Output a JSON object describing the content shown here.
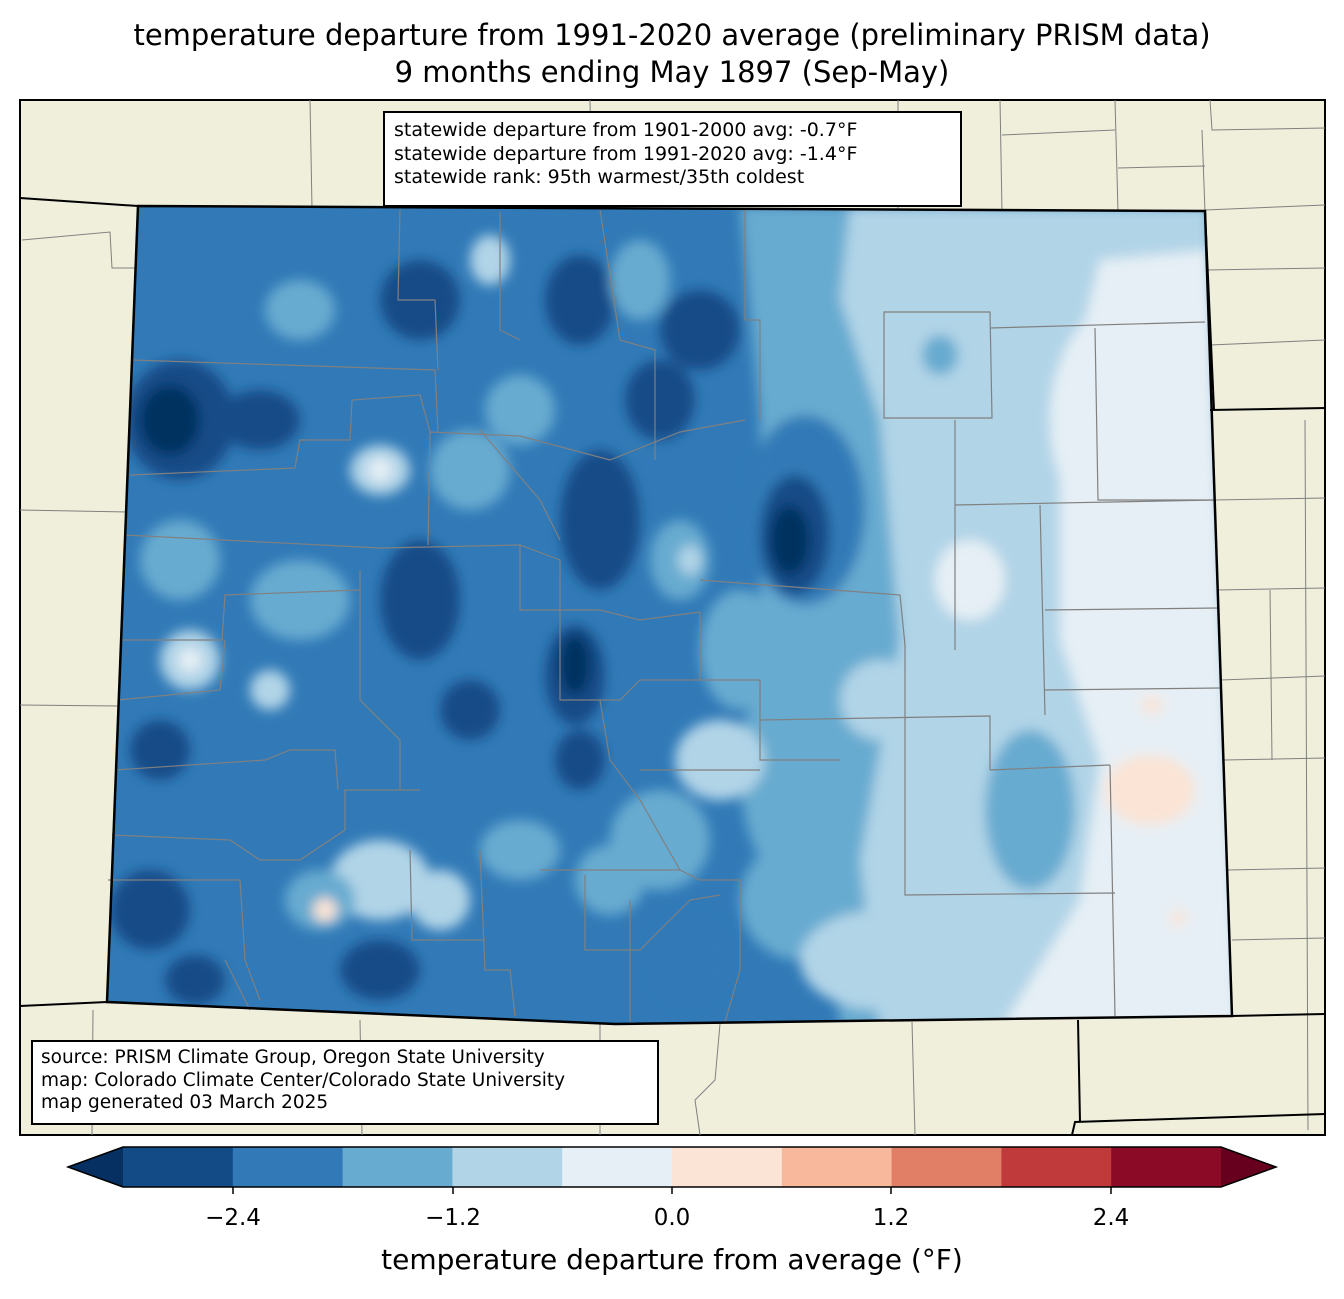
{
  "title": {
    "line1": "temperature departure from 1991-2020 average (preliminary PRISM data)",
    "line2": "9 months ending May 1897 (Sep-May)"
  },
  "stats": {
    "line1": "statewide departure from 1901-2000 avg: -0.7°F",
    "line2": "statewide departure from 1991-2020 avg: -1.4°F",
    "line3": "statewide rank: 95th warmest/35th coldest"
  },
  "source": {
    "line1": "source: PRISM Climate Group, Oregon State University",
    "line2": "map: Colorado Climate Center/Colorado State University",
    "line3": "map generated 03 March 2025"
  },
  "colorbar": {
    "label": "temperature departure from average (°F)",
    "ticks": [
      "−2.4",
      "−1.2",
      "0.0",
      "1.2",
      "2.4"
    ],
    "bins": [
      {
        "range": "< -3.0",
        "color": "#053061"
      },
      {
        "range": "-3.0 to -2.4",
        "color": "#134b87"
      },
      {
        "range": "-2.4 to -1.8",
        "color": "#317ab7"
      },
      {
        "range": "-1.8 to -1.2",
        "color": "#68abd0"
      },
      {
        "range": "-1.2 to -0.6",
        "color": "#b1d4e7"
      },
      {
        "range": "-0.6 to 0.0",
        "color": "#e6eff5"
      },
      {
        "range": "0.0 to 0.6",
        "color": "#fbe4d5"
      },
      {
        "range": "0.6 to 1.2",
        "color": "#f8b89b"
      },
      {
        "range": "1.2 to 1.8",
        "color": "#e17e66"
      },
      {
        "range": "1.8 to 2.4",
        "color": "#c0393b"
      },
      {
        "range": "2.4 to 3.0",
        "color": "#8b0a26"
      },
      {
        "range": "> 3.0",
        "color": "#67001f"
      }
    ]
  },
  "map_colors": {
    "land": "#efefdc",
    "county_lines": "#808080",
    "state_lines": "#000000"
  }
}
